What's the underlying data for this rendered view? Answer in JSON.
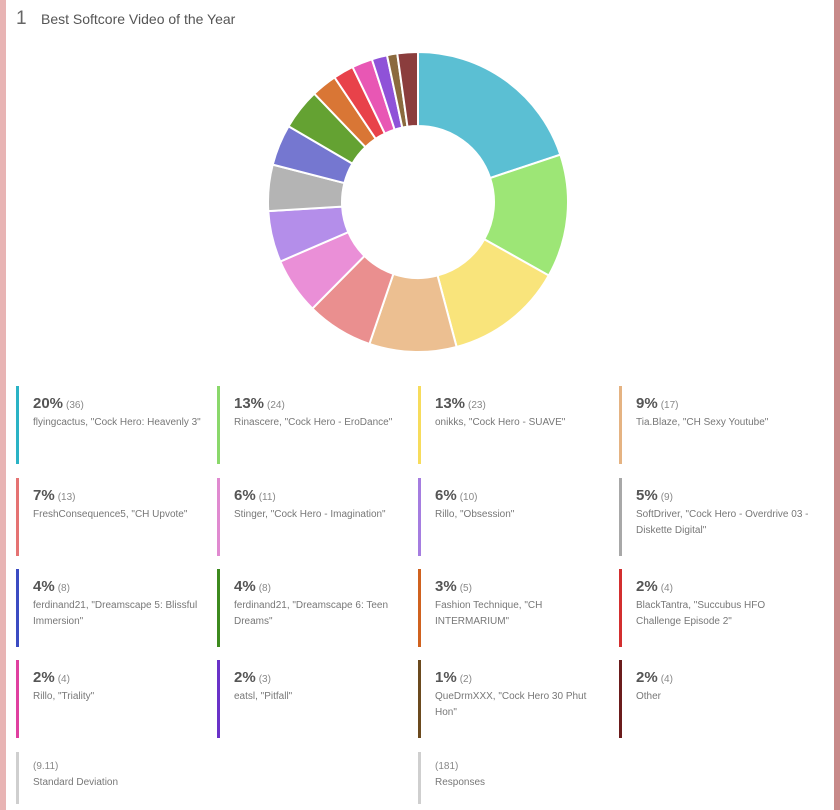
{
  "question": {
    "number": "1",
    "title": "Best Softcore Video of the Year"
  },
  "chart_data": {
    "type": "pie",
    "style": "donut",
    "title": "Best Softcore Video of the Year",
    "slices": [
      {
        "pct": "20%",
        "count": "(36)",
        "value": 36,
        "label": "flyingcactus, \"Cock Hero: Heavenly 3\"",
        "color": "#5bbfd3"
      },
      {
        "pct": "13%",
        "count": "(24)",
        "value": 24,
        "label": "Rinascere, \"Cock Hero - EroDance\"",
        "color": "#9de676"
      },
      {
        "pct": "13%",
        "count": "(23)",
        "value": 23,
        "label": "onikks, \"Cock Hero - SUAVE\"",
        "color": "#f9e47b"
      },
      {
        "pct": "9%",
        "count": "(17)",
        "value": 17,
        "label": "Tia.Blaze, \"CH Sexy Youtube\"",
        "color": "#ecbf91"
      },
      {
        "pct": "7%",
        "count": "(13)",
        "value": 13,
        "label": "FreshConsequence5, \"CH Upvote\"",
        "color": "#ea8f8f"
      },
      {
        "pct": "6%",
        "count": "(11)",
        "value": 11,
        "label": "Stinger, \"Cock Hero - Imagination\"",
        "color": "#ea8fd7"
      },
      {
        "pct": "6%",
        "count": "(10)",
        "value": 10,
        "label": "Rillo, \"Obsession\"",
        "color": "#b48eea"
      },
      {
        "pct": "5%",
        "count": "(9)",
        "value": 9,
        "label": "SoftDriver, \"Cock Hero - Overdrive 03 - Diskette Digital\"",
        "color": "#b4b4b4"
      },
      {
        "pct": "4%",
        "count": "(8)",
        "value": 8,
        "label": "ferdinand21, \"Dreamscape 5: Blissful Immersion\"",
        "color": "#7577d0"
      },
      {
        "pct": "4%",
        "count": "(8)",
        "value": 8,
        "label": "ferdinand21, \"Dreamscape 6: Teen Dreams\"",
        "color": "#64a232"
      },
      {
        "pct": "3%",
        "count": "(5)",
        "value": 5,
        "label": "Fashion Technique, \"CH INTERMARIUM\"",
        "color": "#d97635"
      },
      {
        "pct": "2%",
        "count": "(4)",
        "value": 4,
        "label": "BlackTantra, \"Succubus HFO Challenge Episode 2\"",
        "color": "#e8424a"
      },
      {
        "pct": "2%",
        "count": "(4)",
        "value": 4,
        "label": "Rillo, \"Triality\"",
        "color": "#e857b4"
      },
      {
        "pct": "2%",
        "count": "(3)",
        "value": 3,
        "label": "eatsl, \"Pitfall\"",
        "color": "#8f52d8"
      },
      {
        "pct": "1%",
        "count": "(2)",
        "value": 2,
        "label": "QueDrmXXX, \"Cock Hero 30 Phut Hon\"",
        "color": "#8b6a3e"
      },
      {
        "pct": "2%",
        "count": "(4)",
        "value": 4,
        "label": "Other",
        "color": "#8b3d3d"
      }
    ],
    "legend_colors": [
      "#2ab3c5",
      "#8ad86b",
      "#f7dc5c",
      "#e5b382",
      "#e57373",
      "#e08ad0",
      "#a57de0",
      "#a8a8a8",
      "#3b4bc2",
      "#3d8a1e",
      "#d0621f",
      "#d32f2f",
      "#e040a0",
      "#6a32c8",
      "#6b4a1e",
      "#6b1c1c"
    ]
  },
  "stats": [
    {
      "value": "(9.11)",
      "label": "Standard Deviation",
      "color": "#cfcfcf"
    },
    {
      "value": "(181)",
      "label": "Responses",
      "color": "#cfcfcf"
    }
  ]
}
